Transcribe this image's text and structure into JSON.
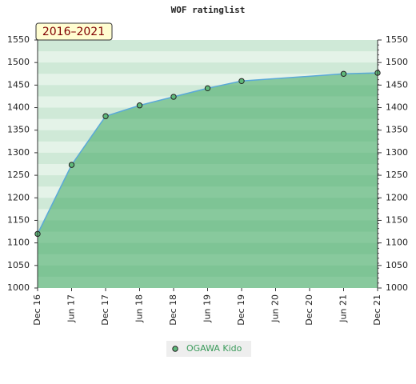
{
  "chart_data": {
    "type": "line",
    "title": "WOF ratinglist",
    "annotation": "2016–2021",
    "xticks": [
      "Dec 16",
      "Jun 17",
      "Dec 17",
      "Jun 18",
      "Dec 18",
      "Jun 19",
      "Dec 19",
      "Jun 20",
      "Dec 20",
      "Jun 21",
      "Dec 21"
    ],
    "x": [
      "Dec 16",
      "Jun 17",
      "Dec 17",
      "Jun 18",
      "Dec 18",
      "Jun 19",
      "Dec 19",
      "Jun 21",
      "Dec 21"
    ],
    "series": [
      {
        "name": "OGAWA Kido",
        "color": "#5aa9d8",
        "values": [
          1120,
          1273,
          1381,
          1405,
          1424,
          1443,
          1459,
          1475,
          1477
        ]
      }
    ],
    "ylim": [
      1000,
      1550
    ],
    "yticks": [
      1000,
      1050,
      1100,
      1150,
      1200,
      1250,
      1300,
      1350,
      1400,
      1450,
      1500,
      1550
    ],
    "y2lim": [
      1000,
      1550
    ],
    "y2ticks": [
      1000,
      1050,
      1100,
      1150,
      1200,
      1250,
      1300,
      1350,
      1400,
      1450,
      1500,
      1550
    ],
    "grid": true
  }
}
